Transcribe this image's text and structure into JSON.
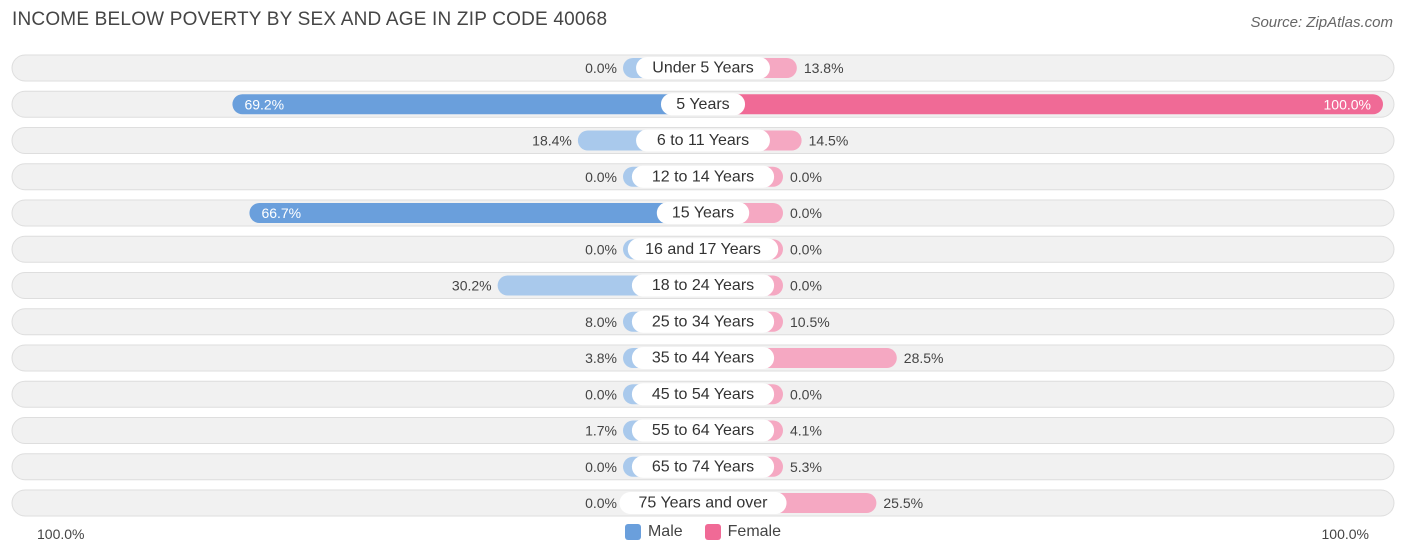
{
  "header": {
    "title": "INCOME BELOW POVERTY BY SEX AND AGE IN ZIP CODE 40068",
    "source": "Source: ZipAtlas.com"
  },
  "axis": {
    "left_label": "100.0%",
    "right_label": "100.0%"
  },
  "legend": {
    "male": "Male",
    "female": "Female"
  },
  "colors": {
    "male_strong": "#6a9fdc",
    "male_light": "#a9c9ec",
    "female_strong": "#f06a96",
    "female_light": "#f5a8c2",
    "row_bg": "#f1f1f1",
    "row_border": "#dedede"
  },
  "chart_data": {
    "type": "bar",
    "orientation": "diverging-horizontal",
    "title": "INCOME BELOW POVERTY BY SEX AND AGE IN ZIP CODE 40068",
    "xlim": [
      -100,
      100
    ],
    "categories": [
      "Under 5 Years",
      "5 Years",
      "6 to 11 Years",
      "12 to 14 Years",
      "15 Years",
      "16 and 17 Years",
      "18 to 24 Years",
      "25 to 34 Years",
      "35 to 44 Years",
      "45 to 54 Years",
      "55 to 64 Years",
      "65 to 74 Years",
      "75 Years and over"
    ],
    "series": [
      {
        "name": "Male",
        "values": [
          0.0,
          69.2,
          18.4,
          0.0,
          66.7,
          0.0,
          30.2,
          8.0,
          3.8,
          0.0,
          1.7,
          0.0,
          0.0
        ],
        "labels": [
          "0.0%",
          "69.2%",
          "18.4%",
          "0.0%",
          "66.7%",
          "0.0%",
          "30.2%",
          "8.0%",
          "3.8%",
          "0.0%",
          "1.7%",
          "0.0%",
          "0.0%"
        ]
      },
      {
        "name": "Female",
        "values": [
          13.8,
          100.0,
          14.5,
          0.0,
          0.0,
          0.0,
          0.0,
          10.5,
          28.5,
          0.0,
          4.1,
          5.3,
          25.5
        ],
        "labels": [
          "13.8%",
          "100.0%",
          "14.5%",
          "0.0%",
          "0.0%",
          "0.0%",
          "0.0%",
          "10.5%",
          "28.5%",
          "0.0%",
          "4.1%",
          "5.3%",
          "25.5%"
        ]
      }
    ],
    "legend_position": "bottom-center"
  }
}
